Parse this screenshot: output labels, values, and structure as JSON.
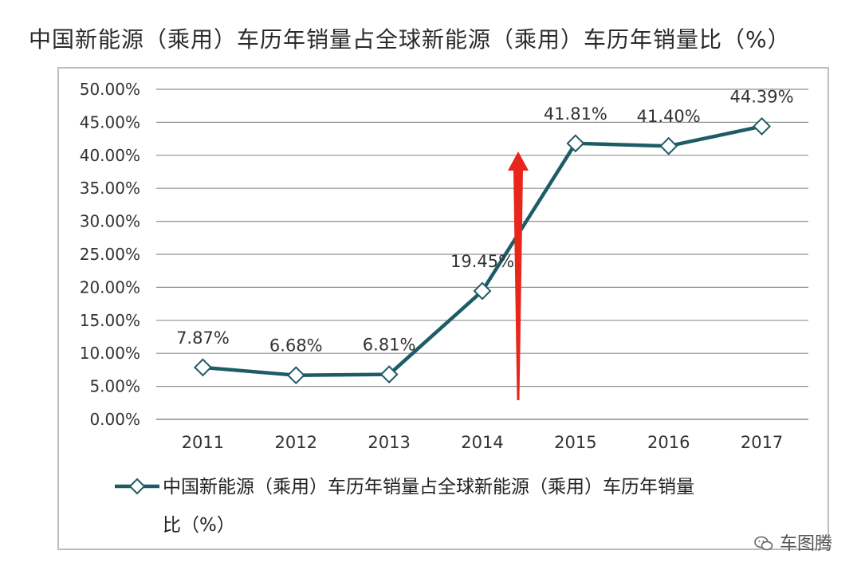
{
  "title": "中国新能源（乘用）车历年销量占全球新能源（乘用）车历年销量比（%）",
  "chart_data": {
    "type": "line",
    "categories": [
      "2011",
      "2012",
      "2013",
      "2014",
      "2015",
      "2016",
      "2017"
    ],
    "series": [
      {
        "name": "中国新能源（乘用）车历年销量占全球新能源（乘用）车历年销量比（%）",
        "values": [
          7.87,
          6.68,
          6.81,
          19.45,
          41.81,
          41.4,
          44.39
        ],
        "labels": [
          "7.87%",
          "6.68%",
          "6.81%",
          "19.45%",
          "41.81%",
          "41.40%",
          "44.39%"
        ],
        "color": "#1d5c66",
        "marker": "diamond"
      }
    ],
    "yticks": [
      "0.00%",
      "5.00%",
      "10.00%",
      "15.00%",
      "20.00%",
      "25.00%",
      "30.00%",
      "35.00%",
      "40.00%",
      "45.00%",
      "50.00%"
    ],
    "ylim": [
      0,
      50
    ],
    "grid": true,
    "legend": "bottom",
    "legend_lines": [
      "中国新能源（乘用）车历年销量占全球新能源（乘用）车历年销量",
      "比（%）"
    ],
    "annotation": {
      "type": "arrow",
      "color": "#e8261c",
      "direction": "up"
    }
  },
  "watermark": "车图腾"
}
